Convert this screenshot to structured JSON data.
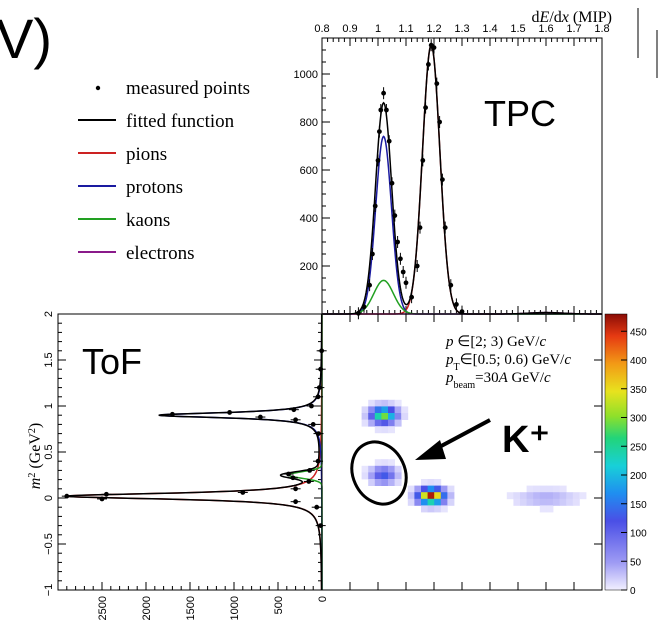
{
  "colors": {
    "pions": "#cc2222",
    "protons": "#1a1aa0",
    "kaons": "#22a022",
    "electrons": "#8a1a8a",
    "fitted": "#000000",
    "points": "#000000",
    "annotation_arrow": "#000000"
  },
  "corner_label": "V)",
  "chart_data": [
    {
      "id": "tpc",
      "type": "line",
      "label": "TPC",
      "xlabel": "dE/dx (MIP)",
      "xlabel_parts": [
        "d",
        "E",
        "/d",
        "x",
        " (MIP)"
      ],
      "x_ticks": [
        "0.8",
        "0.9",
        "1",
        "1.1",
        "1.2",
        "1.3",
        "1.4",
        "1.5",
        "1.6",
        "1.7",
        "1.8"
      ],
      "y_ticks": [
        "200",
        "400",
        "600",
        "800",
        "1000"
      ],
      "xlim": [
        0.8,
        1.8
      ],
      "ylim": [
        0,
        1150
      ],
      "legend_position": "left",
      "legend": [
        {
          "key": "measured",
          "label": "measured points",
          "marker": "dot"
        },
        {
          "key": "fitted",
          "label": "fitted function",
          "marker": "line"
        },
        {
          "key": "pions",
          "label": "pions",
          "marker": "line"
        },
        {
          "key": "protons",
          "label": "protons",
          "marker": "line"
        },
        {
          "key": "kaons",
          "label": "kaons",
          "marker": "line"
        },
        {
          "key": "electrons",
          "label": "electrons",
          "marker": "line"
        }
      ],
      "series": [
        {
          "name": "pions",
          "color_key": "pions",
          "shape": "gaussian",
          "amplitude": 1120,
          "mean": 1.19,
          "sigma": 0.031
        },
        {
          "name": "protons",
          "color_key": "protons",
          "shape": "gaussian",
          "amplitude": 740,
          "mean": 1.02,
          "sigma": 0.028
        },
        {
          "name": "kaons",
          "color_key": "kaons",
          "shape": "gaussian",
          "amplitude": 140,
          "mean": 1.02,
          "sigma": 0.035
        },
        {
          "name": "electrons",
          "color_key": "electrons",
          "shape": "gaussian",
          "amplitude": 6,
          "mean": 1.6,
          "sigma": 0.06
        }
      ],
      "points": {
        "x": [
          0.93,
          0.95,
          0.97,
          0.98,
          0.99,
          1.0,
          1.005,
          1.01,
          1.02,
          1.03,
          1.04,
          1.05,
          1.06,
          1.07,
          1.08,
          1.09,
          1.1,
          1.12,
          1.14,
          1.15,
          1.16,
          1.17,
          1.18,
          1.19,
          1.2,
          1.21,
          1.22,
          1.23,
          1.24,
          1.26,
          1.28,
          1.3
        ],
        "y": [
          3,
          30,
          120,
          250,
          450,
          640,
          760,
          850,
          920,
          850,
          720,
          545,
          410,
          300,
          230,
          175,
          130,
          70,
          200,
          360,
          640,
          860,
          1040,
          1120,
          1110,
          960,
          800,
          560,
          360,
          120,
          40,
          10
        ]
      }
    },
    {
      "id": "tof",
      "type": "line",
      "label": "ToF",
      "ylabel": "m² (GeV²)",
      "ylabel_parts": [
        "m",
        "2",
        " (GeV",
        "2",
        ")"
      ],
      "x_ticks": [
        "2500",
        "2000",
        "1500",
        "1000",
        "500",
        "0"
      ],
      "y_ticks": [
        "−1",
        "−0.5",
        "0",
        "0.5",
        "1",
        "1.5",
        "2"
      ],
      "xlim": [
        3000,
        0
      ],
      "ylim": [
        -1.0,
        2.0
      ],
      "series": [
        {
          "name": "pions",
          "color_key": "pions",
          "shape": "lorentz",
          "amplitude": 2900,
          "mean": 0.02,
          "width": 0.04
        },
        {
          "name": "protons",
          "color_key": "protons",
          "shape": "lorentz",
          "amplitude": 1850,
          "mean": 0.9,
          "width": 0.035
        },
        {
          "name": "kaons",
          "color_key": "kaons",
          "shape": "gaussian",
          "amplitude": 380,
          "mean": 0.25,
          "sigma": 0.035
        }
      ],
      "points": {
        "m2": [
          1.6,
          1.4,
          1.2,
          1.1,
          1.0,
          0.96,
          0.93,
          0.91,
          0.88,
          0.85,
          0.8,
          0.7,
          0.4,
          0.3,
          0.26,
          0.22,
          0.18,
          0.1,
          0.06,
          0.04,
          0.02,
          -0.01,
          -0.04,
          -0.1,
          -0.3
        ],
        "counts": [
          4,
          15,
          30,
          45,
          120,
          320,
          1050,
          1700,
          700,
          300,
          100,
          40,
          45,
          140,
          380,
          330,
          150,
          300,
          900,
          2450,
          2900,
          2500,
          300,
          60,
          15
        ]
      }
    },
    {
      "id": "heatmap",
      "type": "heatmap",
      "annotation_lines": [
        {
          "a": "p",
          "sub": "",
          "b": " ∈[2; 3) GeV/",
          "c": "c"
        },
        {
          "a": "p",
          "sub": "T",
          "b": "∈[0.5; 0.6) GeV/",
          "c": "c"
        },
        {
          "a": "p",
          "sub": "beam",
          "b": "=30",
          "c": "A",
          "d": " GeV/",
          "e": "c"
        }
      ],
      "callout": "K⁺",
      "blobs": [
        {
          "particle": "protons",
          "dedx": 1.02,
          "m2": 0.9,
          "peak": 300
        },
        {
          "particle": "kaons",
          "dedx": 1.02,
          "m2": 0.25,
          "peak": 130
        },
        {
          "particle": "pions",
          "dedx": 1.19,
          "m2": 0.02,
          "peak": 470
        },
        {
          "particle": "electrons",
          "dedx": 1.6,
          "m2": 0.0,
          "peak": 40
        }
      ],
      "colorbar": {
        "ticks": [
          "0",
          "50",
          "100",
          "150",
          "200",
          "250",
          "300",
          "350",
          "400",
          "450"
        ],
        "range": [
          0,
          480
        ]
      }
    }
  ]
}
